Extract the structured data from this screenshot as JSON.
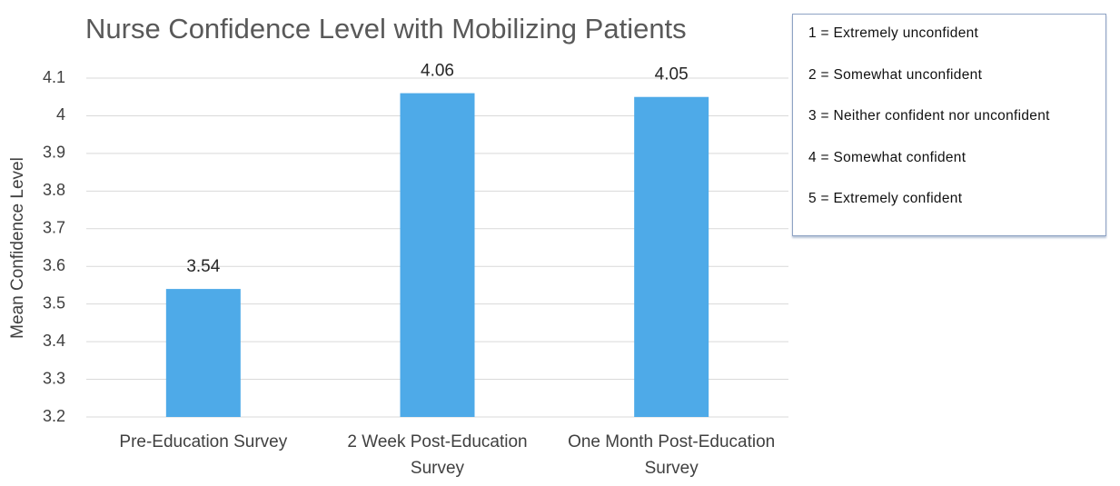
{
  "chart_data": {
    "type": "bar",
    "title": "Nurse Confidence Level with Mobilizing Patients",
    "y_label": "Mean Confidence Level",
    "categories": [
      "Pre-Education Survey",
      "2 Week Post-Education Survey",
      "One Month Post-Education Survey"
    ],
    "values": [
      3.54,
      4.06,
      4.05
    ],
    "color": "#4eaae8",
    "ylim": [
      3.2,
      4.1
    ],
    "yticks": [
      3.2,
      3.3,
      3.4,
      3.5,
      3.6,
      3.7,
      3.8,
      3.9,
      4,
      4.1
    ],
    "grid": true,
    "annotations": [
      "1 = Extremely unconfident",
      "2 = Somewhat unconfident",
      "3 = Neither confident nor unconfident",
      "4 = Somewhat confident",
      "5 = Extremely confident"
    ]
  }
}
